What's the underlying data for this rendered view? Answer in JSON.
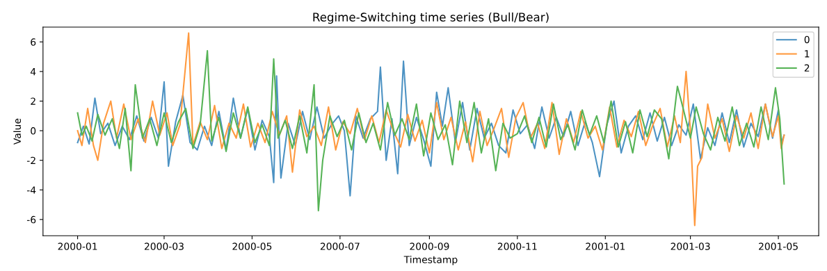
{
  "chart_data": {
    "type": "line",
    "title": "Regime-Switching time series (Bull/Bear)",
    "xlabel": "Timestamp",
    "ylabel": "Value",
    "xlim": [
      "1999-12-08",
      "2001-05-29"
    ],
    "ylim": [
      -7.1,
      7.0
    ],
    "xticks": [
      "2000-01",
      "2000-03",
      "2000-05",
      "2000-07",
      "2000-09",
      "2000-11",
      "2001-01",
      "2001-03",
      "2001-05"
    ],
    "yticks": [
      -6,
      -4,
      -2,
      0,
      2,
      4,
      6
    ],
    "legend": "top right",
    "grid": false,
    "marker": "none",
    "line_style": "solid",
    "series": [
      {
        "name": "0",
        "color": "#4c92c3",
        "x": [
          "2000-01-01",
          "2000-01-05",
          "2000-01-09",
          "2000-01-13",
          "2000-01-17",
          "2000-01-22",
          "2000-01-27",
          "2000-02-01",
          "2000-02-06",
          "2000-02-11",
          "2000-02-16",
          "2000-02-21",
          "2000-02-26",
          "2000-03-01",
          "2000-03-04",
          "2000-03-09",
          "2000-03-14",
          "2000-03-19",
          "2000-03-24",
          "2000-03-29",
          "2000-04-03",
          "2000-04-08",
          "2000-04-13",
          "2000-04-18",
          "2000-04-23",
          "2000-04-28",
          "2000-05-03",
          "2000-05-08",
          "2000-05-13",
          "2000-05-16",
          "2000-05-18",
          "2000-05-21",
          "2000-05-26",
          "2000-05-31",
          "2000-06-05",
          "2000-06-10",
          "2000-06-15",
          "2000-06-20",
          "2000-06-25",
          "2000-06-30",
          "2000-07-04",
          "2000-07-08",
          "2000-07-12",
          "2000-07-17",
          "2000-07-22",
          "2000-07-27",
          "2000-07-29",
          "2000-08-02",
          "2000-08-06",
          "2000-08-10",
          "2000-08-14",
          "2000-08-18",
          "2000-08-23",
          "2000-08-28",
          "2000-09-02",
          "2000-09-06",
          "2000-09-10",
          "2000-09-14",
          "2000-09-19",
          "2000-09-24",
          "2000-09-29",
          "2000-10-04",
          "2000-10-09",
          "2000-10-14",
          "2000-10-19",
          "2000-10-24",
          "2000-10-29",
          "2000-11-03",
          "2000-11-08",
          "2000-11-13",
          "2000-11-18",
          "2000-11-23",
          "2000-11-28",
          "2000-12-03",
          "2000-12-08",
          "2000-12-13",
          "2000-12-18",
          "2000-12-23",
          "2000-12-28",
          "2001-01-02",
          "2001-01-07",
          "2001-01-12",
          "2001-01-17",
          "2001-01-22",
          "2001-01-27",
          "2001-02-01",
          "2001-02-06",
          "2001-02-11",
          "2001-02-16",
          "2001-02-21",
          "2001-02-26",
          "2001-03-03",
          "2001-03-08",
          "2001-03-13",
          "2001-03-18",
          "2001-03-23",
          "2001-03-28",
          "2001-04-02",
          "2001-04-07",
          "2001-04-12",
          "2001-04-17",
          "2001-04-22",
          "2001-04-27",
          "2001-05-01",
          "2001-05-03",
          "2001-05-05"
        ],
        "values": [
          -0.8,
          0.3,
          -0.9,
          2.2,
          -0.2,
          0.5,
          -1.0,
          0.3,
          -0.6,
          1.0,
          -0.7,
          0.9,
          -0.5,
          3.3,
          -2.4,
          0.6,
          2.4,
          -0.8,
          -1.3,
          0.3,
          -1.0,
          1.3,
          -1.3,
          2.2,
          -0.5,
          1.5,
          -1.3,
          0.7,
          -0.4,
          -3.5,
          3.7,
          -3.2,
          0.5,
          -1.0,
          1.3,
          -0.6,
          1.6,
          -0.5,
          0.4,
          1.0,
          0.0,
          -4.4,
          1.0,
          -0.5,
          0.8,
          1.3,
          4.3,
          -2.0,
          0.8,
          -2.9,
          4.7,
          -1.0,
          0.9,
          -0.6,
          -2.4,
          2.6,
          0.3,
          2.9,
          -0.8,
          1.9,
          -1.3,
          1.5,
          -0.5,
          0.5,
          -1.0,
          -1.5,
          1.4,
          -0.2,
          0.4,
          -1.2,
          1.6,
          -0.5,
          0.9,
          -0.4,
          1.3,
          -1.0,
          0.6,
          -0.8,
          -3.1,
          0.4,
          2.0,
          -1.5,
          0.3,
          1.0,
          -0.6,
          1.2,
          -0.7,
          0.9,
          -1.0,
          0.4,
          -0.3,
          1.8,
          -1.9,
          0.2,
          -1.0,
          1.2,
          -0.8,
          1.4,
          -1.1,
          0.5,
          -0.4,
          1.8,
          -0.5,
          1.4,
          -0.8,
          -0.3
        ]
      },
      {
        "name": "1",
        "color": "#ff993e",
        "x": [
          "2000-01-01",
          "2000-01-04",
          "2000-01-08",
          "2000-01-12",
          "2000-01-15",
          "2000-01-19",
          "2000-01-24",
          "2000-01-28",
          "2000-02-02",
          "2000-02-07",
          "2000-02-12",
          "2000-02-17",
          "2000-02-22",
          "2000-02-27",
          "2000-03-03",
          "2000-03-07",
          "2000-03-12",
          "2000-03-18",
          "2000-03-21",
          "2000-03-26",
          "2000-03-31",
          "2000-04-05",
          "2000-04-10",
          "2000-04-15",
          "2000-04-20",
          "2000-04-25",
          "2000-04-30",
          "2000-05-05",
          "2000-05-10",
          "2000-05-15",
          "2000-05-20",
          "2000-05-25",
          "2000-05-29",
          "2000-06-03",
          "2000-06-08",
          "2000-06-13",
          "2000-06-18",
          "2000-06-23",
          "2000-06-28",
          "2000-07-03",
          "2000-07-08",
          "2000-07-13",
          "2000-07-18",
          "2000-07-23",
          "2000-07-28",
          "2000-08-02",
          "2000-08-07",
          "2000-08-12",
          "2000-08-17",
          "2000-08-22",
          "2000-08-27",
          "2000-09-01",
          "2000-09-06",
          "2000-09-11",
          "2000-09-16",
          "2000-09-21",
          "2000-09-26",
          "2000-10-01",
          "2000-10-06",
          "2000-10-11",
          "2000-10-16",
          "2000-10-21",
          "2000-10-26",
          "2000-10-31",
          "2000-11-05",
          "2000-11-10",
          "2000-11-15",
          "2000-11-20",
          "2000-11-25",
          "2000-11-30",
          "2000-12-05",
          "2000-12-10",
          "2000-12-15",
          "2000-12-20",
          "2000-12-25",
          "2000-12-30",
          "2001-01-04",
          "2001-01-09",
          "2001-01-14",
          "2001-01-19",
          "2001-01-24",
          "2001-01-29",
          "2001-02-03",
          "2001-02-08",
          "2001-02-13",
          "2001-02-18",
          "2001-02-22",
          "2001-02-26",
          "2001-03-01",
          "2001-03-04",
          "2001-03-06",
          "2001-03-09",
          "2001-03-13",
          "2001-03-18",
          "2001-03-23",
          "2001-03-28",
          "2001-04-02",
          "2001-04-07",
          "2001-04-12",
          "2001-04-17",
          "2001-04-22",
          "2001-04-27",
          "2001-05-01",
          "2001-05-03",
          "2001-05-05"
        ],
        "values": [
          0.0,
          -1.0,
          1.5,
          -1.0,
          -2.0,
          0.5,
          2.0,
          -0.5,
          1.8,
          -0.6,
          0.8,
          -0.8,
          2.0,
          -0.3,
          1.2,
          -1.0,
          0.4,
          6.6,
          -1.0,
          0.6,
          -0.6,
          1.7,
          -1.2,
          0.5,
          -0.5,
          1.8,
          -1.1,
          0.5,
          -0.8,
          1.3,
          -0.3,
          1.0,
          -2.8,
          1.4,
          -0.4,
          0.3,
          -1.0,
          1.6,
          -1.3,
          0.6,
          -0.2,
          1.5,
          -0.6,
          1.0,
          -0.8,
          1.4,
          0.0,
          -1.1,
          1.1,
          -0.7,
          0.7,
          -1.5,
          1.9,
          -0.6,
          0.9,
          -1.3,
          0.6,
          -2.1,
          1.3,
          -1.0,
          0.2,
          1.5,
          -1.8,
          0.9,
          1.9,
          -0.5,
          0.5,
          -1.2,
          1.9,
          -1.6,
          0.8,
          -0.8,
          1.3,
          -0.5,
          0.3,
          -1.3,
          1.6,
          -1.1,
          0.7,
          -0.4,
          1.3,
          -1.0,
          0.4,
          1.5,
          -1.1,
          1.0,
          -0.8,
          4.0,
          0.0,
          -6.4,
          -2.4,
          -1.8,
          1.8,
          -0.5,
          0.8,
          -1.4,
          1.0,
          -0.5,
          1.2,
          -1.2,
          1.8,
          -0.4,
          1.0,
          -1.2,
          -0.3
        ]
      },
      {
        "name": "2",
        "color": "#56b356",
        "x": [
          "2000-01-01",
          "2000-01-04",
          "2000-01-07",
          "2000-01-11",
          "2000-01-15",
          "2000-01-20",
          "2000-01-25",
          "2000-01-30",
          "2000-02-03",
          "2000-02-07",
          "2000-02-10",
          "2000-02-15",
          "2000-02-20",
          "2000-02-25",
          "2000-03-01",
          "2000-03-06",
          "2000-03-11",
          "2000-03-16",
          "2000-03-21",
          "2000-03-26",
          "2000-03-31",
          "2000-04-03",
          "2000-04-08",
          "2000-04-13",
          "2000-04-18",
          "2000-04-23",
          "2000-04-28",
          "2000-05-03",
          "2000-05-08",
          "2000-05-13",
          "2000-05-16",
          "2000-05-19",
          "2000-05-24",
          "2000-05-29",
          "2000-06-03",
          "2000-06-08",
          "2000-06-13",
          "2000-06-16",
          "2000-06-19",
          "2000-06-24",
          "2000-06-29",
          "2000-07-04",
          "2000-07-09",
          "2000-07-14",
          "2000-07-19",
          "2000-07-24",
          "2000-07-29",
          "2000-08-03",
          "2000-08-08",
          "2000-08-13",
          "2000-08-18",
          "2000-08-23",
          "2000-08-28",
          "2000-09-02",
          "2000-09-07",
          "2000-09-12",
          "2000-09-17",
          "2000-09-22",
          "2000-09-27",
          "2000-10-02",
          "2000-10-07",
          "2000-10-12",
          "2000-10-17",
          "2000-10-22",
          "2000-10-27",
          "2000-11-01",
          "2000-11-06",
          "2000-11-11",
          "2000-11-16",
          "2000-11-21",
          "2000-11-26",
          "2000-12-01",
          "2000-12-06",
          "2000-12-11",
          "2000-12-16",
          "2000-12-21",
          "2000-12-26",
          "2000-12-31",
          "2001-01-05",
          "2001-01-10",
          "2001-01-15",
          "2001-01-20",
          "2001-01-25",
          "2001-01-30",
          "2001-02-04",
          "2001-02-09",
          "2001-02-14",
          "2001-02-20",
          "2001-02-24",
          "2001-03-01",
          "2001-03-05",
          "2001-03-10",
          "2001-03-15",
          "2001-03-20",
          "2001-03-25",
          "2001-03-30",
          "2001-04-04",
          "2001-04-09",
          "2001-04-14",
          "2001-04-19",
          "2001-04-24",
          "2001-04-29",
          "2001-05-02",
          "2001-05-05"
        ],
        "values": [
          1.2,
          -0.3,
          0.3,
          -0.7,
          1.1,
          -0.3,
          0.8,
          -1.2,
          1.5,
          -2.7,
          3.1,
          -0.5,
          0.8,
          -1.0,
          1.2,
          -0.8,
          0.6,
          1.5,
          -1.2,
          0.4,
          5.4,
          -0.7,
          0.9,
          -1.4,
          1.2,
          -0.5,
          1.6,
          -0.8,
          0.4,
          -1.0,
          4.85,
          -0.5,
          0.7,
          -1.2,
          1.0,
          -1.5,
          3.1,
          -5.4,
          -2.0,
          1.0,
          -0.4,
          0.7,
          -1.3,
          1.2,
          -0.8,
          0.5,
          -1.3,
          1.9,
          -0.3,
          0.8,
          -0.6,
          1.8,
          -1.7,
          1.2,
          -0.6,
          0.4,
          -2.3,
          2.0,
          -0.8,
          1.9,
          -1.5,
          0.8,
          -2.7,
          0.5,
          -0.5,
          -0.2,
          1.0,
          -0.8,
          0.9,
          -1.1,
          1.8,
          -0.6,
          0.4,
          -1.3,
          1.4,
          -0.3,
          1.0,
          -0.8,
          2.0,
          -1.1,
          0.6,
          -1.5,
          1.4,
          -0.4,
          1.4,
          0.8,
          -1.9,
          3.0,
          1.5,
          -0.5,
          1.6,
          -0.2,
          -1.3,
          0.9,
          -0.7,
          1.6,
          -1.0,
          0.5,
          -1.1,
          1.6,
          -0.6,
          2.9,
          0.8,
          -3.6
        ]
      }
    ]
  }
}
